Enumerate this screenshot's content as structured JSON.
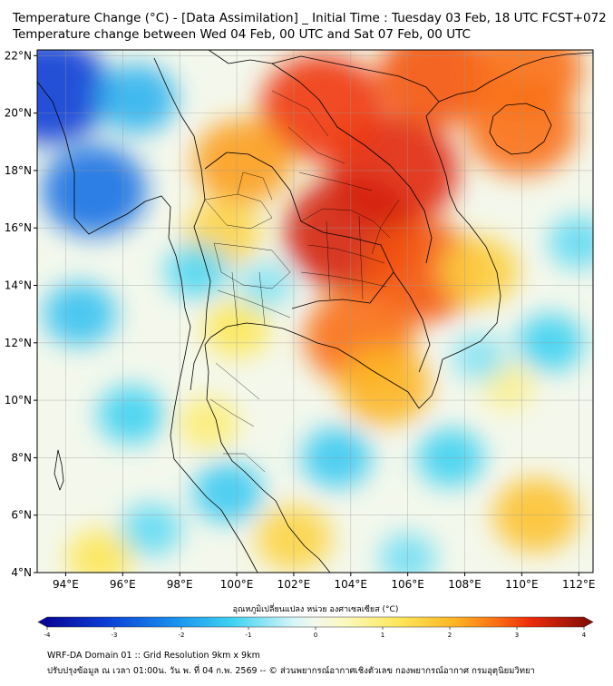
{
  "title_line1": "Temperature Change (°C) - [Data Assimilation] _ Initial Time : Tuesday 03 Feb, 18 UTC FCST+072",
  "title_line2": "Temperature change between Wed 04 Feb, 00 UTC and Sat 07 Feb, 00 UTC",
  "map": {
    "lon_range": [
      93,
      112.5
    ],
    "lat_range": [
      4,
      22.2
    ],
    "lon_ticks": [
      {
        "value": 94,
        "label": "94°E"
      },
      {
        "value": 96,
        "label": "96°E"
      },
      {
        "value": 98,
        "label": "98°E"
      },
      {
        "value": 100,
        "label": "100°E"
      },
      {
        "value": 102,
        "label": "102°E"
      },
      {
        "value": 104,
        "label": "104°E"
      },
      {
        "value": 106,
        "label": "106°E"
      },
      {
        "value": 108,
        "label": "108°E"
      },
      {
        "value": 110,
        "label": "110°E"
      },
      {
        "value": 112,
        "label": "112°E"
      }
    ],
    "lat_ticks": [
      {
        "value": 22,
        "label": "22°N"
      },
      {
        "value": 20,
        "label": "20°N"
      },
      {
        "value": 18,
        "label": "18°N"
      },
      {
        "value": 16,
        "label": "16°N"
      },
      {
        "value": 14,
        "label": "14°N"
      },
      {
        "value": 12,
        "label": "12°N"
      },
      {
        "value": 10,
        "label": "10°N"
      },
      {
        "value": 8,
        "label": "8°N"
      },
      {
        "value": 6,
        "label": "6°N"
      },
      {
        "value": 4,
        "label": "4°N"
      }
    ],
    "field_blobs": [
      {
        "lon": 105.5,
        "lat": 18.0,
        "value": 3.2
      },
      {
        "lon": 104.0,
        "lat": 15.8,
        "value": 3.3
      },
      {
        "lon": 103.0,
        "lat": 20.2,
        "value": 3.0
      },
      {
        "lon": 106.5,
        "lat": 14.5,
        "value": 2.8
      },
      {
        "lon": 107.0,
        "lat": 21.3,
        "value": 2.8
      },
      {
        "lon": 110.2,
        "lat": 21.5,
        "value": 2.6
      },
      {
        "lon": 110.0,
        "lat": 19.5,
        "value": 2.6
      },
      {
        "lon": 104.3,
        "lat": 12.2,
        "value": 2.6
      },
      {
        "lon": 105.2,
        "lat": 10.5,
        "value": 2.0
      },
      {
        "lon": 100.2,
        "lat": 18.3,
        "value": 2.2
      },
      {
        "lon": 99.5,
        "lat": 15.8,
        "value": 1.5
      },
      {
        "lon": 100.0,
        "lat": 12.5,
        "value": 1.2
      },
      {
        "lon": 108.5,
        "lat": 14.5,
        "value": 1.6
      },
      {
        "lon": 99.0,
        "lat": 9.2,
        "value": 1.0
      },
      {
        "lon": 102.0,
        "lat": 5.2,
        "value": 1.5
      },
      {
        "lon": 110.5,
        "lat": 6.0,
        "value": 1.8
      },
      {
        "lon": 109.5,
        "lat": 10.5,
        "value": 0.8
      },
      {
        "lon": 95.2,
        "lat": 4.5,
        "value": 1.2
      },
      {
        "lon": 93.4,
        "lat": 20.8,
        "value": -3.0
      },
      {
        "lon": 95.0,
        "lat": 17.3,
        "value": -2.4
      },
      {
        "lon": 96.5,
        "lat": 20.5,
        "value": -1.6
      },
      {
        "lon": 94.5,
        "lat": 13.0,
        "value": -1.4
      },
      {
        "lon": 96.3,
        "lat": 9.5,
        "value": -1.2
      },
      {
        "lon": 101.0,
        "lat": 14.0,
        "value": -0.8
      },
      {
        "lon": 98.6,
        "lat": 14.5,
        "value": -1.1
      },
      {
        "lon": 99.7,
        "lat": 6.8,
        "value": -1.3
      },
      {
        "lon": 103.5,
        "lat": 8.0,
        "value": -1.3
      },
      {
        "lon": 107.5,
        "lat": 8.0,
        "value": -1.2
      },
      {
        "lon": 111.0,
        "lat": 12.0,
        "value": -1.2
      },
      {
        "lon": 112.0,
        "lat": 15.5,
        "value": -1.0
      },
      {
        "lon": 108.5,
        "lat": 11.5,
        "value": -0.8
      },
      {
        "lon": 97.0,
        "lat": 5.5,
        "value": -1.0
      },
      {
        "lon": 106.0,
        "lat": 4.5,
        "value": -0.9
      }
    ]
  },
  "colorbar": {
    "title": "อุณหภูมิเปลี่ยนแปลง หน่วย องศาเซลเซียส (°C)",
    "min": -4,
    "max": 4,
    "tick_labels": [
      "-4",
      "-3",
      "-2",
      "-1",
      "0",
      "1",
      "2",
      "3",
      "4"
    ],
    "stops": [
      {
        "value": -4,
        "color": "#08008f"
      },
      {
        "value": -3,
        "color": "#0c3fd6"
      },
      {
        "value": -2,
        "color": "#1a93ee"
      },
      {
        "value": -1.2,
        "color": "#3fd2f2"
      },
      {
        "value": -0.3,
        "color": "#d7f6f9"
      },
      {
        "value": 0,
        "color": "#f4f8ec"
      },
      {
        "value": 0.4,
        "color": "#fbf9c0"
      },
      {
        "value": 1.2,
        "color": "#fde75a"
      },
      {
        "value": 2,
        "color": "#fdb524"
      },
      {
        "value": 2.6,
        "color": "#f97014"
      },
      {
        "value": 3.1,
        "color": "#ed2b0c"
      },
      {
        "value": 4,
        "color": "#7d0a05"
      }
    ]
  },
  "footer_line1": "WRF-DA Domain 01 :: Grid Resolution 9km x 9km",
  "footer_line2": "ปรับปรุงข้อมูล ณ เวลา 01:00น. วัน พ. ที่ 04 ก.พ. 2569 -- © ส่วนพยากรณ์อากาศเชิงตัวเลข กองพยากรณ์อากาศ กรมอุตุนิยมวิทยา",
  "style": {
    "border_line_color": "#000000",
    "grid_line_color": "#9a9a9a"
  }
}
